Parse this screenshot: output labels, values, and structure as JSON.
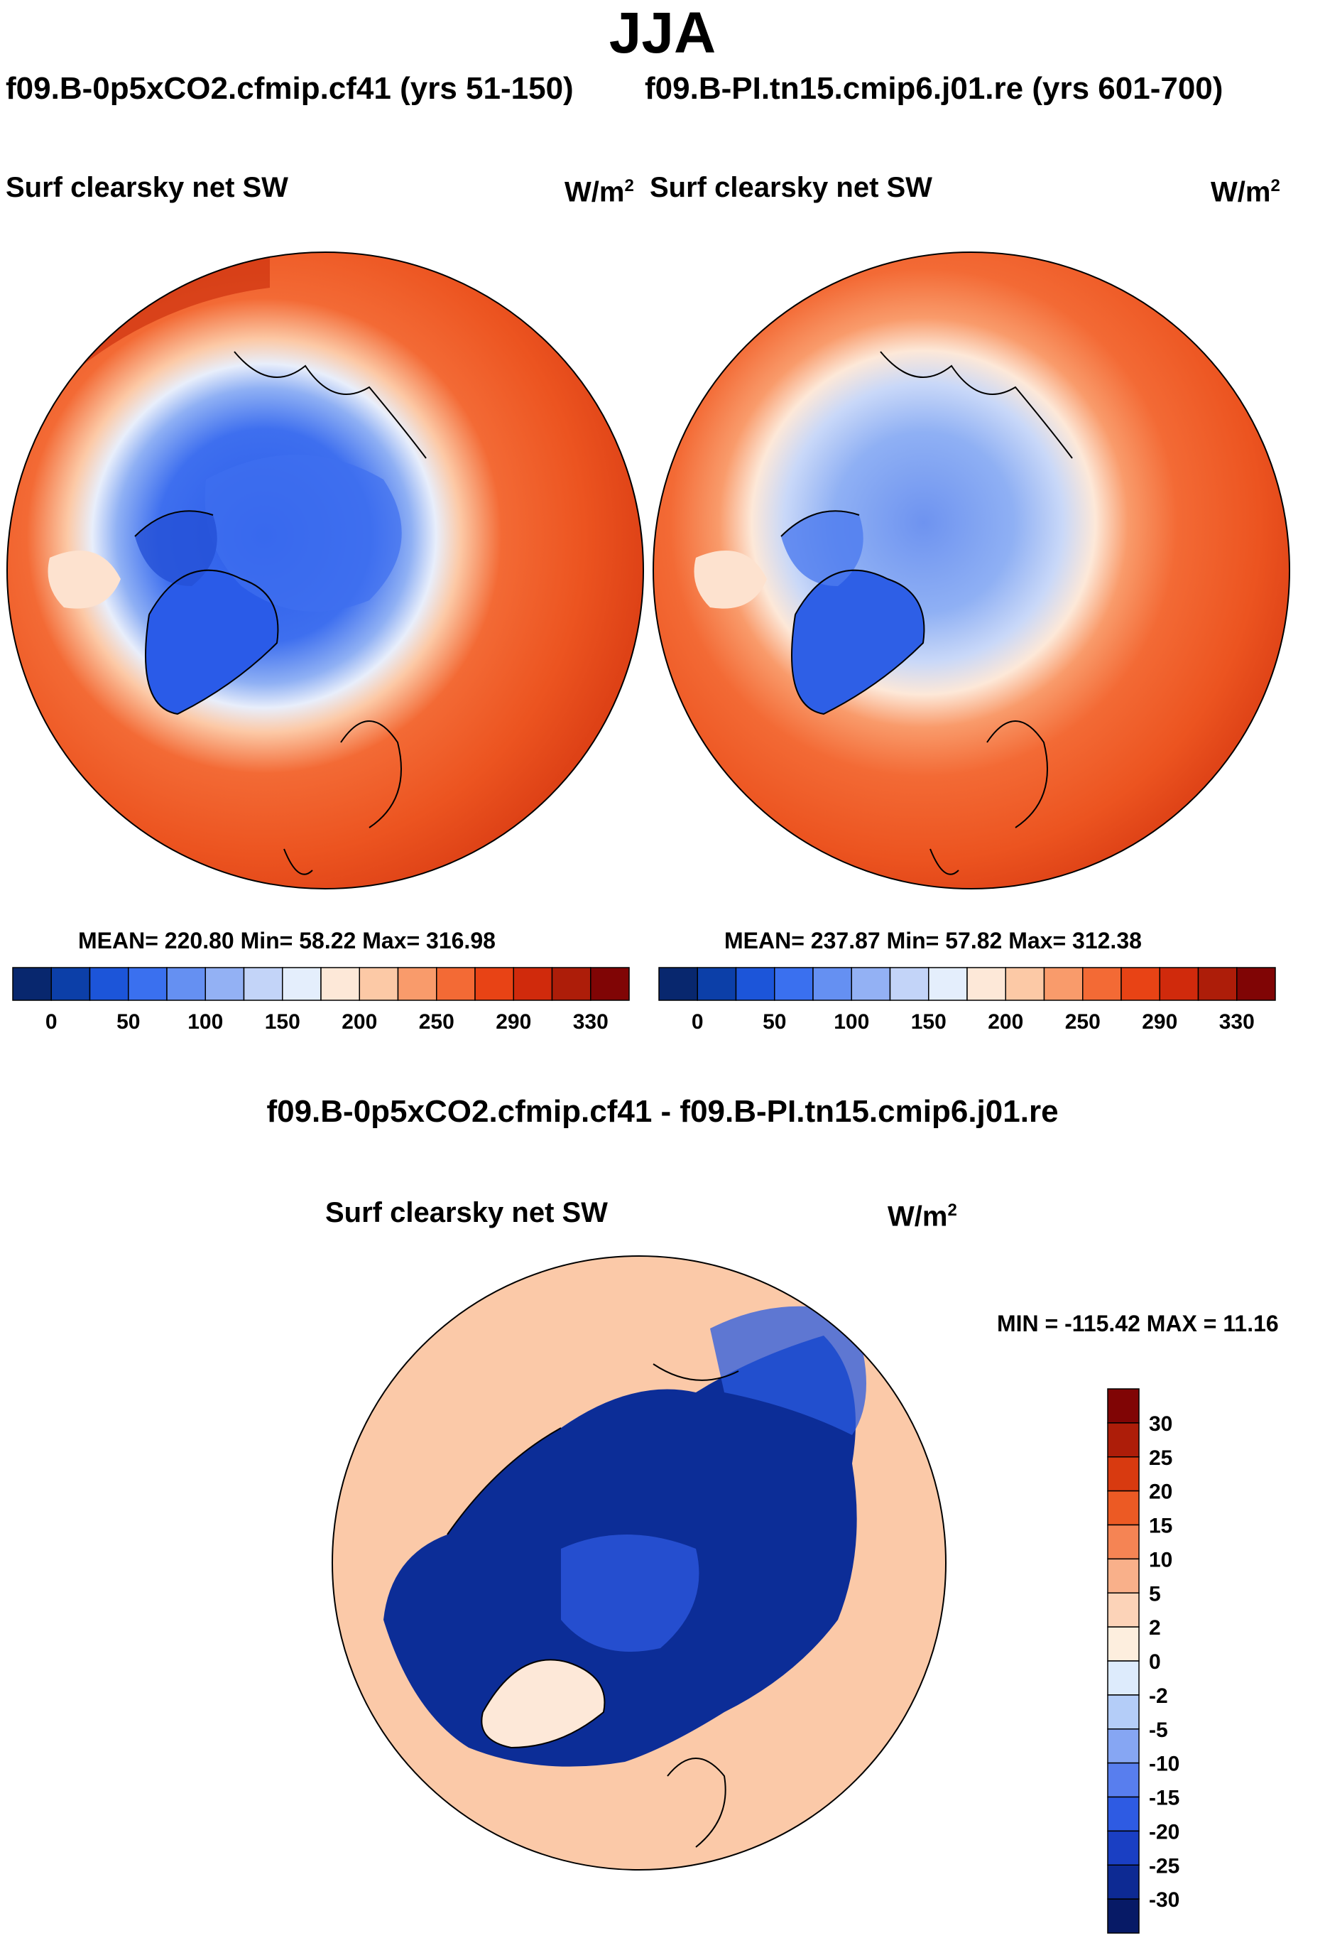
{
  "header": {
    "title": "JJA",
    "case_left": "f09.B-0p5xCO2.cfmip.cf41 (yrs 51-150)",
    "case_right": "f09.B-PI.tn15.cmip6.j01.re (yrs 601-700)",
    "diff_title": "f09.B-0p5xCO2.cfmip.cf41 - f09.B-PI.tn15.cmip6.j01.re"
  },
  "panels": [
    {
      "title": "Surf clearsky net SW",
      "units": "W/m",
      "units_exp": "2",
      "stats": "MEAN= 220.80  Min=  58.22  Max= 316.98"
    },
    {
      "title": "Surf clearsky net SW",
      "units": "W/m",
      "units_exp": "2",
      "stats": "MEAN= 237.87  Min=  57.82  Max= 312.38"
    },
    {
      "title": "Surf clearsky net SW",
      "units": "W/m",
      "units_exp": "2",
      "stats": "MIN = -115.42 MAX =  11.16"
    }
  ],
  "chart_data": [
    {
      "type": "heatmap",
      "projection": "north-polar-stereographic",
      "title": "Surf clearsky net SW",
      "subtitle": "f09.B-0p5xCO2.cfmip.cf41 (yrs 51-150)",
      "units": "W/m2",
      "mean": 220.8,
      "min": 58.22,
      "max": 316.98,
      "colorbar_ticks": [
        "0",
        "50",
        "100",
        "150",
        "200",
        "250",
        "290",
        "330"
      ],
      "colorbar_colors": [
        "#08276e",
        "#0c3fa8",
        "#1c55d9",
        "#3a70ef",
        "#6590f2",
        "#93b1f4",
        "#c3d4f8",
        "#e4eefc",
        "#fde8d8",
        "#fcc9a6",
        "#f99b6b",
        "#f36a35",
        "#e84315",
        "#d02a0c",
        "#ad1d09",
        "#800505"
      ]
    },
    {
      "type": "heatmap",
      "projection": "north-polar-stereographic",
      "title": "Surf clearsky net SW",
      "subtitle": "f09.B-PI.tn15.cmip6.j01.re (yrs 601-700)",
      "units": "W/m2",
      "mean": 237.87,
      "min": 57.82,
      "max": 312.38,
      "colorbar_ticks": [
        "0",
        "50",
        "100",
        "150",
        "200",
        "250",
        "290",
        "330"
      ],
      "colorbar_colors": [
        "#08276e",
        "#0c3fa8",
        "#1c55d9",
        "#3a70ef",
        "#6590f2",
        "#93b1f4",
        "#c3d4f8",
        "#e4eefc",
        "#fde8d8",
        "#fcc9a6",
        "#f99b6b",
        "#f36a35",
        "#e84315",
        "#d02a0c",
        "#ad1d09",
        "#800505"
      ]
    },
    {
      "type": "heatmap",
      "projection": "north-polar-stereographic",
      "title": "Surf clearsky net SW",
      "subtitle": "f09.B-0p5xCO2.cfmip.cf41 - f09.B-PI.tn15.cmip6.j01.re",
      "units": "W/m2",
      "min": -115.42,
      "max": 11.16,
      "colorbar_ticks": [
        "30",
        "25",
        "20",
        "15",
        "10",
        "5",
        "2",
        "0",
        "-2",
        "-5",
        "-10",
        "-15",
        "-20",
        "-25",
        "-30"
      ],
      "colorbar_colors": [
        "#800505",
        "#ad1d09",
        "#d83a10",
        "#ec5a24",
        "#f58454",
        "#f9b08a",
        "#fcd3b8",
        "#fdeede",
        "#ddebfc",
        "#b4cdf8",
        "#86a6f3",
        "#587eee",
        "#2e5be3",
        "#1a3fc3",
        "#0d2a93",
        "#071a66"
      ]
    }
  ]
}
